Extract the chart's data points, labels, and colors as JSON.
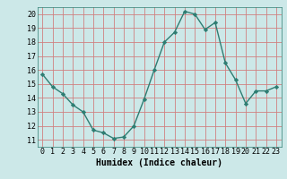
{
  "x": [
    0,
    1,
    2,
    3,
    4,
    5,
    6,
    7,
    8,
    9,
    10,
    11,
    12,
    13,
    14,
    15,
    16,
    17,
    18,
    19,
    20,
    21,
    22,
    23
  ],
  "y": [
    15.7,
    14.8,
    14.3,
    13.5,
    13.0,
    11.7,
    11.5,
    11.1,
    11.2,
    12.0,
    13.9,
    16.0,
    18.0,
    18.7,
    20.2,
    20.0,
    18.9,
    19.4,
    16.5,
    15.3,
    13.6,
    14.5,
    14.5,
    14.8
  ],
  "line_color": "#2e7d72",
  "marker": "D",
  "marker_size": 2.2,
  "line_width": 1.0,
  "bg_color": "#cce8e8",
  "grid_color": "#d08080",
  "xlabel": "Humidex (Indice chaleur)",
  "xlabel_fontsize": 7,
  "tick_fontsize": 6,
  "xlim": [
    -0.5,
    23.5
  ],
  "ylim": [
    10.5,
    20.5
  ],
  "yticks": [
    11,
    12,
    13,
    14,
    15,
    16,
    17,
    18,
    19,
    20
  ],
  "xticks": [
    0,
    1,
    2,
    3,
    4,
    5,
    6,
    7,
    8,
    9,
    10,
    11,
    12,
    13,
    14,
    15,
    16,
    17,
    18,
    19,
    20,
    21,
    22,
    23
  ]
}
